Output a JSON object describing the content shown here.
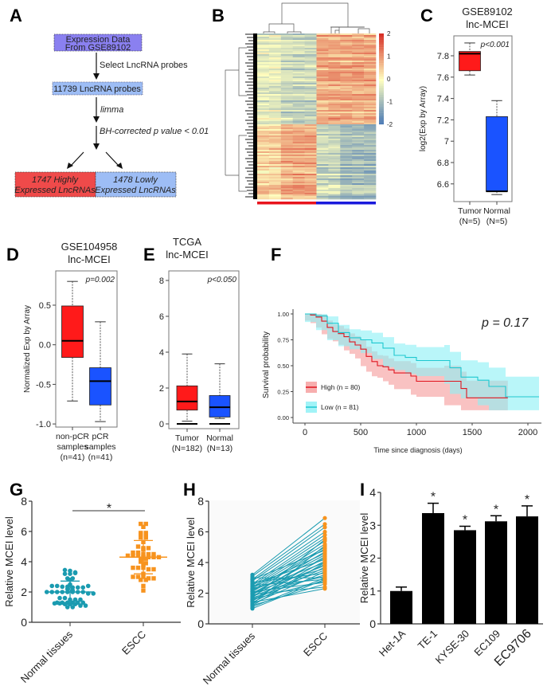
{
  "panel_labels": [
    "A",
    "B",
    "C",
    "D",
    "E",
    "F",
    "G",
    "H",
    "I"
  ],
  "flowchart": {
    "box1_line1": "Expression Data",
    "box1_line2": "From GSE89102",
    "step1": "Select LncRNA probes",
    "box2": "11739 LncRNA probes",
    "step2": "limma",
    "step3": "BH-corrected p value < 0.01",
    "high_line1": "1747 Highly",
    "high_line2": "Expressed LncRNAs",
    "low_line1": "1478 Lowly",
    "low_line2": "Expressed LncRNAs",
    "colors": {
      "box1": "#8a80f0",
      "box2": "#9dbdf5",
      "high": "#ef4a4a",
      "low": "#9dbdf5"
    }
  },
  "chart_data": [
    {
      "panel": "B",
      "type": "heatmap",
      "colorbar_ticks": [
        2,
        1,
        0,
        -1,
        -2
      ],
      "colorbar_range": [
        -2,
        2
      ],
      "colors": {
        "low": "#4575b4",
        "mid": "#ffffbf",
        "high": "#d73027"
      },
      "group_bar_colors": [
        "#e8141e",
        "#1a1adc"
      ]
    },
    {
      "panel": "C",
      "type": "box",
      "title": [
        "GSE89102",
        "lnc-MCEI"
      ],
      "ylabel": "log2(Exp by Array)",
      "yticks": [
        6.6,
        6.8,
        7.0,
        7.2,
        7.4,
        7.6,
        7.8
      ],
      "annotation": "p<0.001",
      "groups": [
        {
          "label": [
            "Tumor",
            "(N=5)"
          ],
          "color": "#ff1a1a",
          "min": 7.62,
          "q1": 7.66,
          "median": 7.82,
          "q3": 7.84,
          "max": 7.92
        },
        {
          "label": [
            "Normal",
            "(N=5)"
          ],
          "color": "#1a53ff",
          "min": 6.5,
          "q1": 6.53,
          "median": 6.53,
          "q3": 7.23,
          "max": 7.38
        }
      ]
    },
    {
      "panel": "D",
      "type": "box",
      "title": [
        "GSE104958",
        "lnc-MCEI"
      ],
      "ylabel": "Normalized Exp by Array",
      "yticks": [
        -1.0,
        -0.5,
        0.0,
        0.5
      ],
      "ytick_labels": [
        "-1.0",
        "-0.5",
        "0.0",
        "0.5"
      ],
      "annotation": "p=0.002",
      "groups": [
        {
          "label": [
            "non-pCR",
            "samples",
            "(n=41)"
          ],
          "color": "#ff1a1a",
          "min": -0.71,
          "q1": -0.16,
          "median": 0.05,
          "q3": 0.49,
          "max": 0.8
        },
        {
          "label": [
            "pCR",
            "samples",
            "(n=41)"
          ],
          "color": "#1a53ff",
          "min": -0.97,
          "q1": -0.76,
          "median": -0.46,
          "q3": -0.29,
          "max": 0.29
        }
      ]
    },
    {
      "panel": "E",
      "type": "box",
      "title": [
        "TCGA",
        "lnc-MCEI"
      ],
      "ylabel": "",
      "yticks": [
        0,
        2,
        4,
        6,
        8
      ],
      "annotation": "p<0.050",
      "groups": [
        {
          "label": [
            "Tumor",
            "(N=182)"
          ],
          "color": "#ff1a1a",
          "min": 0.15,
          "q1": 0.77,
          "median": 1.25,
          "q3": 2.12,
          "max": 3.9,
          "outlier": 0
        },
        {
          "label": [
            "Normal",
            "(N=13)"
          ],
          "color": "#1a53ff",
          "min": 0.3,
          "q1": 0.38,
          "median": 0.93,
          "q3": 1.58,
          "max": 3.35,
          "outlier": 0
        }
      ]
    },
    {
      "panel": "F",
      "type": "line",
      "xlabel": "Time since diagnosis (days)",
      "ylabel": "Survival probability",
      "xticks": [
        0,
        500,
        1000,
        1500,
        2000
      ],
      "yticks": [
        0,
        0.25,
        0.5,
        0.75,
        1.0
      ],
      "ytick_labels": [
        "0.00",
        "0.25",
        "0.50",
        "0.75",
        "1.00"
      ],
      "xlim": [
        0,
        2100
      ],
      "ylim": [
        0,
        1
      ],
      "annotation": "p = 0.17",
      "legend_position": "bottom-left",
      "series": [
        {
          "name": "High (n = 80)",
          "color": "#e0141e",
          "band_color": "#f59a9a",
          "t": [
            0,
            50,
            100,
            150,
            200,
            250,
            300,
            350,
            400,
            450,
            500,
            550,
            600,
            650,
            700,
            750,
            800,
            950,
            1000,
            1250,
            1400,
            1450,
            1820
          ],
          "s": [
            1.0,
            0.99,
            0.97,
            0.93,
            0.87,
            0.83,
            0.81,
            0.78,
            0.73,
            0.7,
            0.66,
            0.59,
            0.54,
            0.5,
            0.49,
            0.46,
            0.43,
            0.4,
            0.35,
            0.35,
            0.28,
            0.19,
            0.19
          ]
        },
        {
          "name": "Low (n = 81)",
          "color": "#1ec8d0",
          "band_color": "#8af0f5",
          "t": [
            0,
            100,
            200,
            300,
            400,
            500,
            600,
            700,
            800,
            900,
            1000,
            1250,
            1300,
            1400,
            1550,
            1650,
            1800,
            2100
          ],
          "s": [
            1.0,
            0.98,
            0.91,
            0.82,
            0.77,
            0.75,
            0.72,
            0.67,
            0.6,
            0.58,
            0.55,
            0.55,
            0.48,
            0.39,
            0.36,
            0.3,
            0.2,
            0.2
          ]
        }
      ]
    },
    {
      "panel": "G",
      "type": "scatter",
      "ylabel": "Relative MCEI level",
      "yticks": [
        0,
        2,
        4,
        6,
        8
      ],
      "ylim": [
        0,
        8
      ],
      "categories": [
        "Normal tissues",
        "ESCC"
      ],
      "significance": "*",
      "series": [
        {
          "category": "Normal tissues",
          "color": "#1a9bb0",
          "mean": 2.0,
          "sd": 0.72,
          "values": [
            3.45,
            3.4,
            3.3,
            3.2,
            3.2,
            3.25,
            2.9,
            2.9,
            2.8,
            2.5,
            2.4,
            2.4,
            2.35,
            2.35,
            2.3,
            2.3,
            2.3,
            2.4,
            2.2,
            2.1,
            2.0,
            2.0,
            2.0,
            2.0,
            2.0,
            2.0,
            2.0,
            2.0,
            1.9,
            1.9,
            1.6,
            1.6,
            1.5,
            1.5,
            1.5,
            1.3,
            1.3,
            1.3,
            1.3,
            1.3,
            1.3,
            1.25,
            1.25,
            1.2,
            1.2,
            1.2,
            1.1,
            1.1,
            1.0,
            1.0
          ]
        },
        {
          "category": "ESCC",
          "color": "#f7931e",
          "mean": 4.3,
          "sd": 1.1,
          "values": [
            6.5,
            6.5,
            6.3,
            5.9,
            5.9,
            5.8,
            5.7,
            5.6,
            5.6,
            5.3,
            5.0,
            4.9,
            4.9,
            4.8,
            4.6,
            4.6,
            4.5,
            4.5,
            4.5,
            4.4,
            4.4,
            4.4,
            4.3,
            4.3,
            4.3,
            4.3,
            4.2,
            4.2,
            4.0,
            3.9,
            3.8,
            3.6,
            3.6,
            3.6,
            3.5,
            3.5,
            3.2,
            3.0,
            3.0,
            3.0,
            2.9,
            2.9,
            2.8,
            2.8,
            2.4,
            2.1
          ]
        }
      ]
    },
    {
      "panel": "H",
      "type": "line",
      "ylabel": "Relative MCEI level",
      "yticks": [
        0,
        2,
        4,
        6,
        8
      ],
      "ylim": [
        0,
        8
      ],
      "categories": [
        "Normal tissues",
        "ESCC"
      ],
      "line_color": "#1a9bb0",
      "normal_color": "#1a9bb0",
      "escc_color": "#f7931e",
      "pairs_normal": [
        3.2,
        3.1,
        3.0,
        2.9,
        2.9,
        2.8,
        2.7,
        2.6,
        2.6,
        2.5,
        2.5,
        2.4,
        2.4,
        2.3,
        2.3,
        2.2,
        2.2,
        2.1,
        2.1,
        2.0,
        2.0,
        2.0,
        1.9,
        1.9,
        1.8,
        1.8,
        1.7,
        1.7,
        1.6,
        1.6,
        1.5,
        1.5,
        1.4,
        1.4,
        1.3,
        1.3,
        1.2,
        1.2,
        1.1,
        1.0
      ],
      "pairs_escc": [
        6.9,
        6.5,
        3.0,
        6.3,
        4.8,
        6.0,
        3.3,
        5.8,
        4.2,
        5.6,
        2.9,
        5.4,
        4.6,
        5.2,
        3.6,
        5.0,
        4.0,
        2.7,
        4.9,
        3.8,
        4.5,
        3.1,
        4.7,
        2.4,
        4.3,
        3.5,
        5.5,
        3.2,
        4.1,
        2.8,
        3.9,
        4.4,
        2.3,
        3.7,
        3.4,
        5.1,
        2.6,
        4.0,
        3.0,
        2.9
      ]
    },
    {
      "panel": "I",
      "type": "bar",
      "ylabel": "Relative MCEI level",
      "yticks": [
        0,
        1,
        2,
        3,
        4
      ],
      "ylim": [
        0,
        4
      ],
      "categories": [
        "Het-1A",
        "TE-1",
        "KYSE-30",
        "EC109",
        "EC9706"
      ],
      "values": [
        1.0,
        3.37,
        2.85,
        3.12,
        3.27
      ],
      "errors": [
        0.12,
        0.3,
        0.12,
        0.17,
        0.32
      ],
      "significance": [
        "",
        "*",
        "*",
        "*",
        "*"
      ],
      "bar_color": "#000000"
    }
  ]
}
